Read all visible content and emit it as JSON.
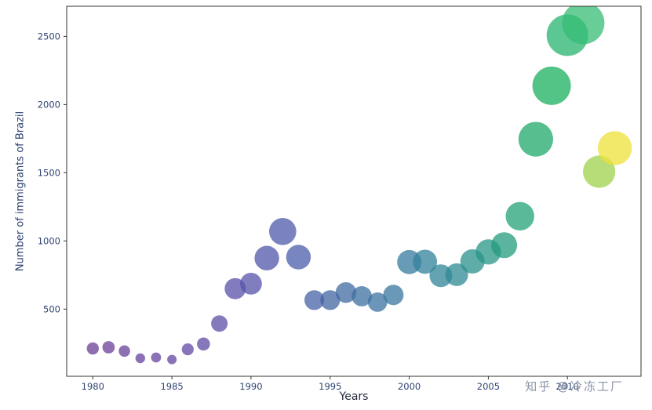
{
  "figure": {
    "watermark": "知乎 @冷冻工厂"
  },
  "chart_data": {
    "type": "scatter",
    "title": "",
    "xlabel": "Years",
    "ylabel": "Number of immigrants of Brazil",
    "x": [
      1980,
      1981,
      1982,
      1983,
      1984,
      1985,
      1986,
      1987,
      1988,
      1989,
      1990,
      1991,
      1992,
      1993,
      1994,
      1995,
      1996,
      1997,
      1998,
      1999,
      2000,
      2001,
      2002,
      2003,
      2004,
      2005,
      2006,
      2007,
      2008,
      2009,
      2010,
      2011,
      2012,
      2013
    ],
    "values": [
      211,
      220,
      192,
      139,
      145,
      130,
      205,
      244,
      394,
      650,
      686,
      874,
      1069,
      881,
      566,
      566,
      621,
      594,
      551,
      604,
      845,
      847,
      745,
      752,
      850,
      919,
      969,
      1181,
      1746,
      2138,
      2509,
      2598,
      1508,
      1681
    ],
    "point_colors": [
      "#6a3d96",
      "#693e98",
      "#67409a",
      "#66419c",
      "#64439e",
      "#6245a0",
      "#6147a2",
      "#5f49a4",
      "#5c4da6",
      "#5850a8",
      "#5553a9",
      "#5156aa",
      "#4d5aaa",
      "#4a5ea8",
      "#4662a6",
      "#4366a3",
      "#406aa1",
      "#3d6fa0",
      "#3b73a1",
      "#38779f",
      "#357b9e",
      "#33809b",
      "#308598",
      "#2d8a93",
      "#2a908c",
      "#279585",
      "#249b7d",
      "#21a175",
      "#1ea86a",
      "#1baf5e",
      "#26b46f",
      "#35bc74",
      "#9ed14b",
      "#eee037"
    ],
    "marker_alpha": 0.75,
    "size_mapping": "marker area proportional to value",
    "color_mapping": "viridis-style gradient over year",
    "xlim": [
      1978.35,
      2014.65
    ],
    "ylim": [
      7,
      2721
    ],
    "x_ticks": [
      1980,
      1985,
      1990,
      1995,
      2000,
      2005,
      2010
    ],
    "y_ticks": [
      500,
      1000,
      1500,
      2000,
      2500
    ],
    "grid": false,
    "legend": null,
    "tick_label_color": "#2e4272",
    "axis_color": "#333333",
    "plot_bg": "#ffffff"
  }
}
